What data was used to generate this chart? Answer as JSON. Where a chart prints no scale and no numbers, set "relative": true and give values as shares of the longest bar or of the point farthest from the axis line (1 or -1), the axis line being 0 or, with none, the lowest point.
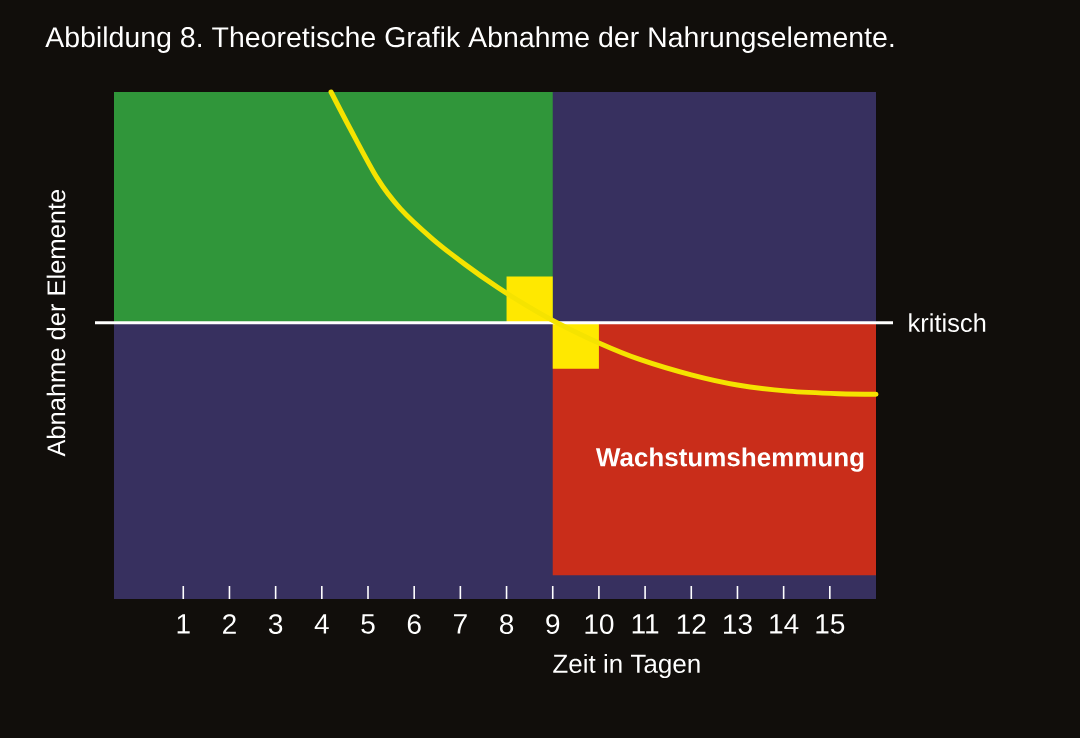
{
  "chart_data": {
    "type": "line",
    "title": "Abbildung 8. Theoretische Grafik Abnahme der Nahrungselemente.",
    "xlabel": "Zeit in Tagen",
    "ylabel": "Abnahme der Elemente",
    "relative": true,
    "xlim": [
      -0.5,
      16
    ],
    "xticks": [
      1,
      2,
      3,
      4,
      5,
      6,
      7,
      8,
      9,
      10,
      11,
      12,
      13,
      14,
      15
    ],
    "tick_labels": "x",
    "series": [
      {
        "type": "area",
        "color": "#30963a",
        "x": [
          -0.5,
          9,
          9,
          -0.5
        ],
        "values": [
          1,
          1,
          0.545,
          0.545
        ]
      },
      {
        "type": "area",
        "color": "#c92d1a",
        "x": [
          9,
          16,
          16,
          9
        ],
        "values": [
          0.545,
          0.545,
          0.047,
          0.047
        ]
      },
      {
        "type": "area",
        "color": "#ffe800",
        "x": [
          8,
          9,
          9,
          10,
          10,
          9,
          9,
          8
        ],
        "values": [
          0.636,
          0.636,
          0.545,
          0.545,
          0.454,
          0.454,
          0.545,
          0.545
        ]
      },
      {
        "color": "#f5e300",
        "x": [
          4.2,
          4.6,
          5.2,
          5.7,
          6.4,
          7.1,
          7.8,
          8.5,
          9.05,
          10.0,
          10.9,
          12.0,
          13.0,
          14.1,
          15.2,
          16.0
        ],
        "values": [
          1,
          0.93,
          0.83,
          0.77,
          0.71,
          0.66,
          0.615,
          0.575,
          0.547,
          0.505,
          0.472,
          0.442,
          0.422,
          0.41,
          0.405,
          0.404
        ]
      }
    ],
    "ref_lines": [
      {
        "axis": "y",
        "value": 0.545,
        "label": "kritisch",
        "color": "#ffffff"
      }
    ],
    "annotations": [
      "Wachstumshemmung"
    ]
  }
}
